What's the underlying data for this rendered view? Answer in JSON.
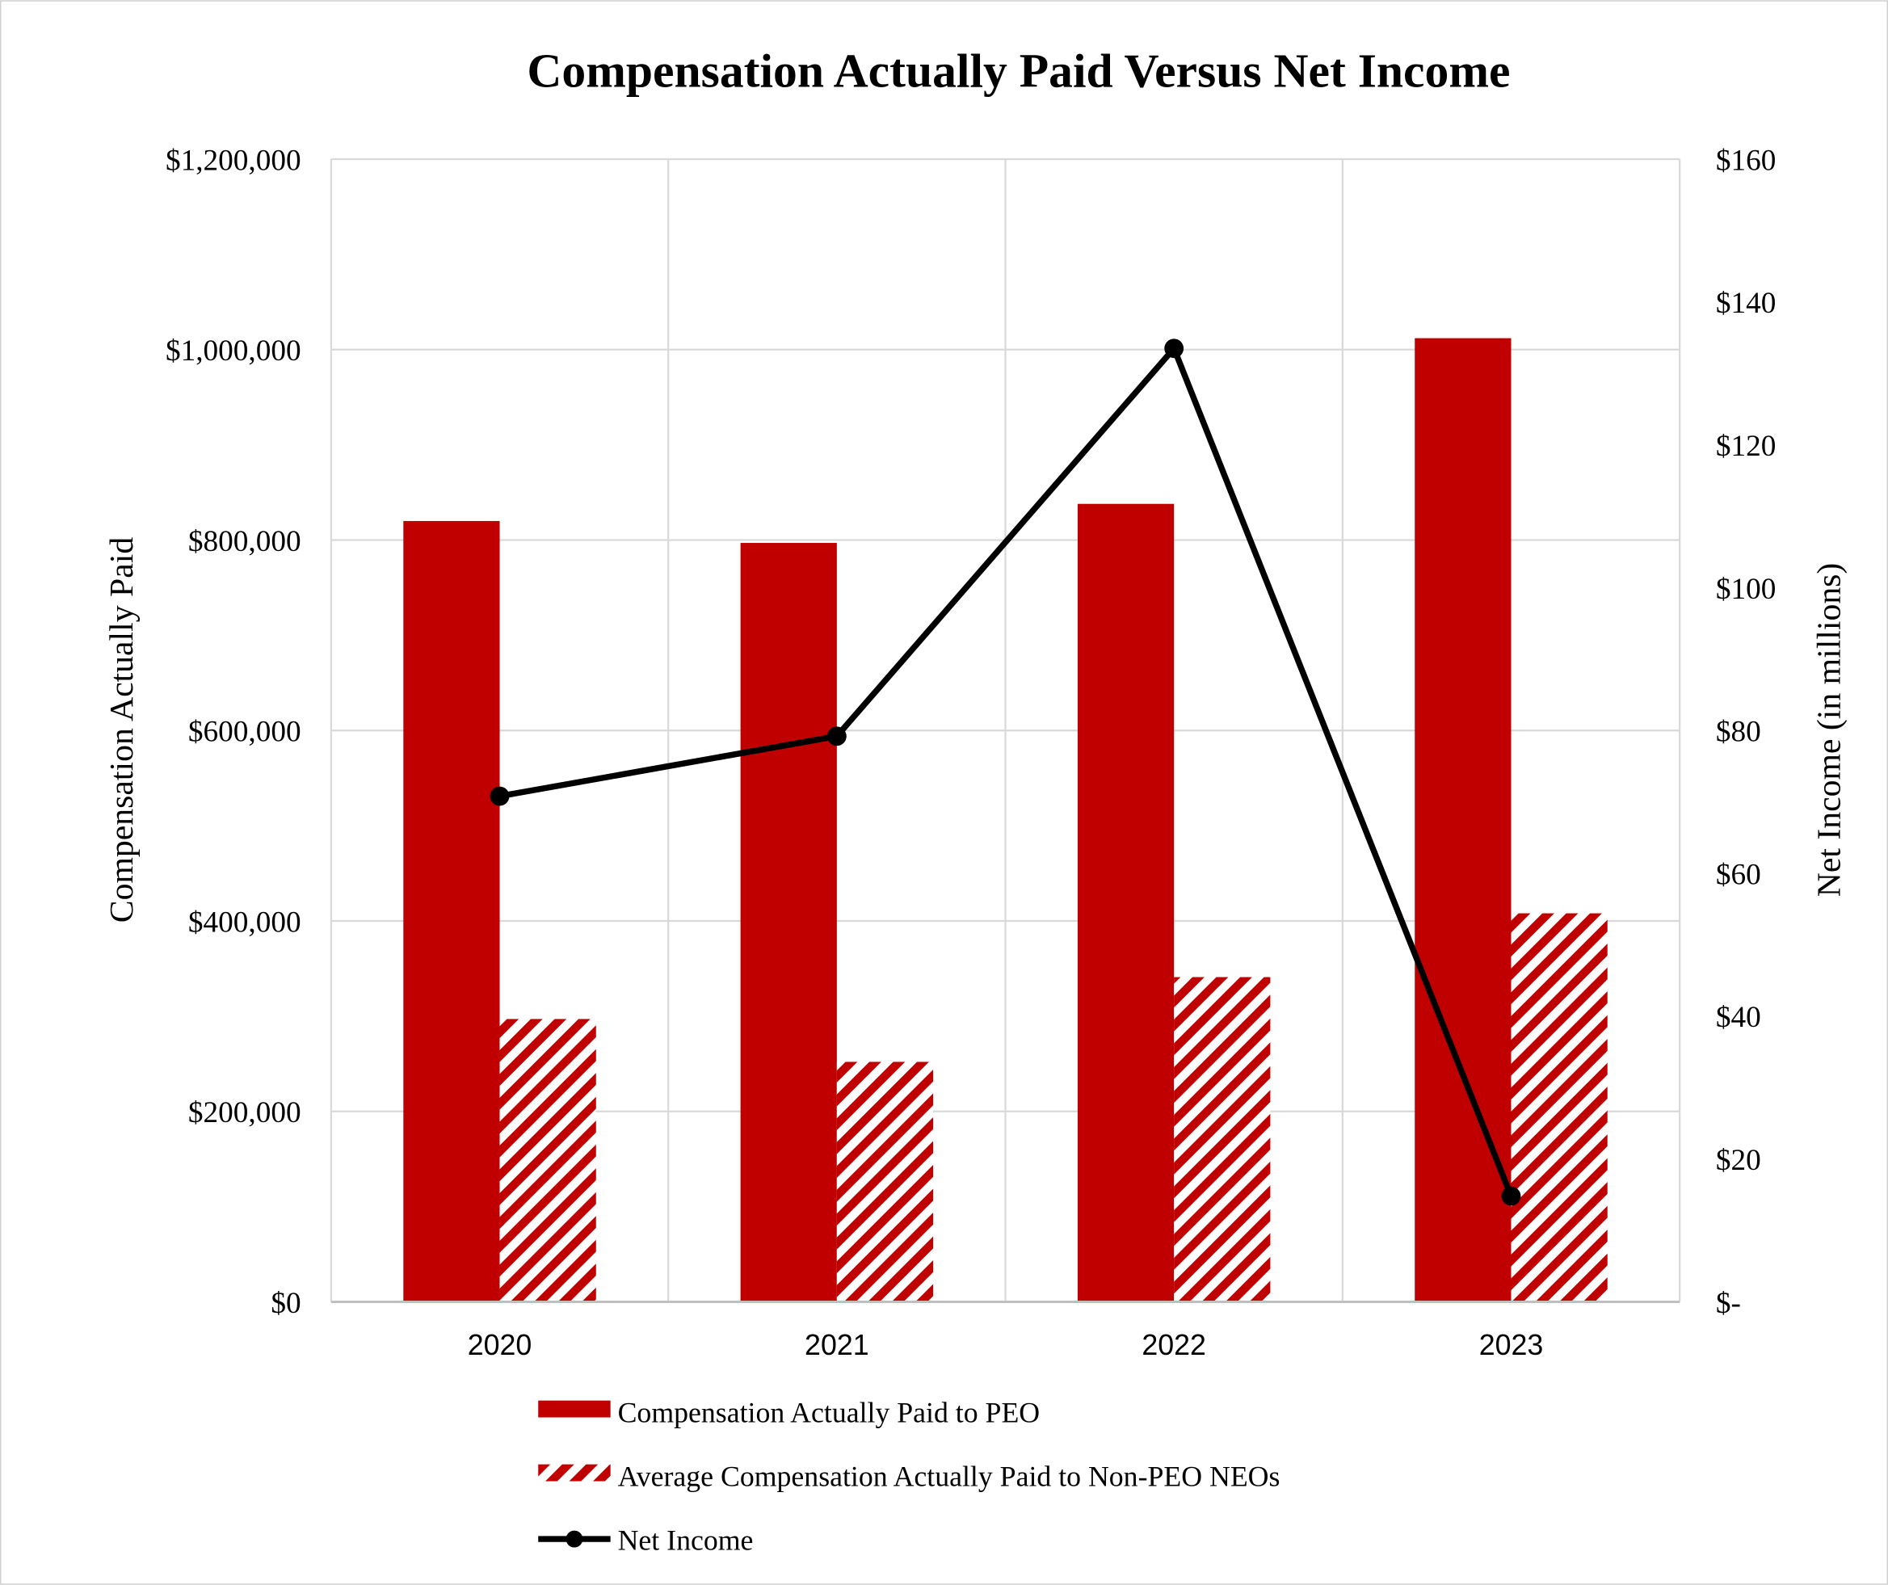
{
  "chart_data": {
    "type": "bar+line",
    "title": "Compensation Actually Paid Versus Net Income",
    "categories": [
      "2020",
      "2021",
      "2022",
      "2023"
    ],
    "y_left": {
      "label": "Compensation Actually Paid",
      "range": [
        0,
        1200000
      ],
      "ticks": [
        0,
        200000,
        400000,
        600000,
        800000,
        1000000,
        1200000
      ],
      "tick_labels": [
        "$0",
        "$200,000",
        "$400,000",
        "$600,000",
        "$800,000",
        "$1,000,000",
        "$1,200,000"
      ]
    },
    "y_right": {
      "label": "Net Income (in millions)",
      "range": [
        0,
        160
      ],
      "ticks": [
        0,
        20,
        40,
        60,
        80,
        100,
        120,
        140,
        160
      ],
      "tick_labels": [
        "$-",
        "$20",
        "$40",
        "$60",
        "$80",
        "$100",
        "$120",
        "$140",
        "$160"
      ]
    },
    "grid": true,
    "legend_position": "bottom",
    "series": [
      {
        "name": "Compensation Actually Paid to PEO",
        "type": "bar",
        "axis": "left",
        "style": "solid",
        "color": "#C00000",
        "values": [
          820000,
          797000,
          838000,
          1012000
        ]
      },
      {
        "name": "Average Compensation Actually Paid to Non-PEO NEOs",
        "type": "bar",
        "axis": "left",
        "style": "diagonal-stripes",
        "color": "#C00000",
        "values": [
          297000,
          252000,
          341000,
          408000
        ]
      },
      {
        "name": "Net Income",
        "type": "line",
        "axis": "right",
        "marker": "circle",
        "color": "#000000",
        "values": [
          70.8,
          79.2,
          133.5,
          14.8
        ]
      }
    ]
  }
}
